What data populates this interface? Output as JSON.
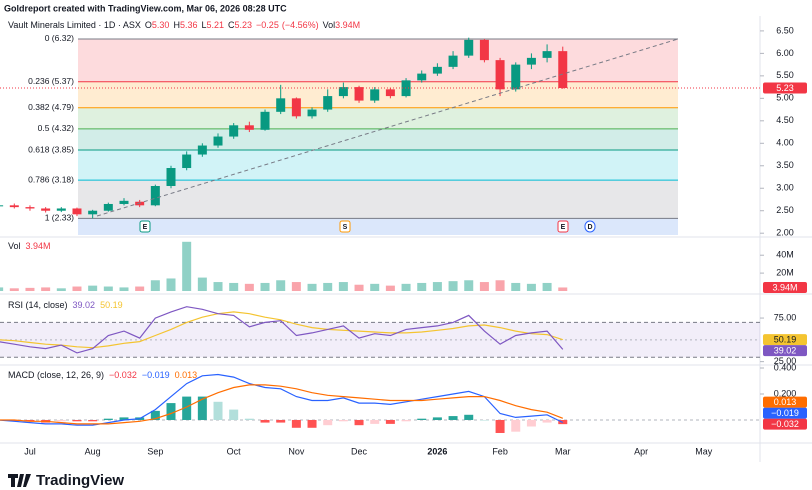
{
  "header": {
    "text": "Goldreport created with TradingView.com, Mar 06, 2026 08:28 UTC"
  },
  "footer": {
    "brand": "TradingView"
  },
  "chart_data": [
    {
      "type": "candlestick",
      "title": "Vault Minerals Limited · 1D · ASX",
      "ohlc": [
        {
          "key": "O",
          "value": 5.3,
          "label": "5.30"
        },
        {
          "key": "H",
          "value": 5.36,
          "label": "5.36"
        },
        {
          "key": "L",
          "value": 5.21,
          "label": "5.21"
        },
        {
          "key": "C",
          "value": 5.23,
          "label": "5.23"
        }
      ],
      "change": {
        "value": -0.25,
        "label": "−0.25"
      },
      "change_percent": {
        "value": -4.56,
        "label": "(−4.56%)"
      },
      "volume_key": "Vol",
      "volume": {
        "value": 3940000,
        "label": "3.94M"
      },
      "categories": [
        null,
        null,
        "Jul",
        null,
        null,
        null,
        "Aug",
        null,
        null,
        null,
        "Sep",
        null,
        null,
        null,
        null,
        "Oct",
        null,
        null,
        null,
        "Nov",
        null,
        null,
        null,
        "Dec",
        null,
        null,
        null,
        null,
        "2026",
        null,
        null,
        null,
        "Feb",
        null,
        null,
        null,
        "Mar",
        null,
        null,
        null,
        null,
        "Apr",
        null,
        null,
        null,
        "May"
      ],
      "open": [
        2.6,
        2.62,
        2.58,
        2.55,
        2.5,
        2.55,
        2.42,
        2.5,
        2.65,
        2.7,
        2.62,
        3.05,
        3.45,
        3.75,
        3.95,
        4.15,
        4.4,
        4.3,
        4.7,
        5.0,
        4.6,
        4.75,
        5.05,
        5.25,
        4.95,
        5.2,
        5.05,
        5.4,
        5.55,
        5.7,
        5.95,
        6.3,
        5.85,
        5.2,
        5.75,
        5.9,
        6.05,
        null,
        null,
        null,
        null,
        null,
        null,
        null,
        null,
        null
      ],
      "high": [
        2.68,
        2.66,
        2.62,
        2.58,
        2.58,
        2.57,
        2.52,
        2.68,
        2.78,
        2.74,
        3.08,
        3.5,
        3.82,
        4.0,
        4.22,
        4.45,
        4.48,
        4.75,
        5.3,
        5.02,
        4.8,
        5.2,
        5.35,
        5.28,
        5.25,
        5.24,
        5.45,
        5.62,
        5.78,
        6.05,
        6.35,
        6.32,
        5.9,
        5.8,
        6.0,
        6.2,
        6.15,
        null,
        null,
        null,
        null,
        null,
        null,
        null,
        null,
        null
      ],
      "low": [
        2.56,
        2.55,
        2.5,
        2.46,
        2.47,
        2.38,
        2.33,
        2.48,
        2.62,
        2.58,
        2.6,
        3.0,
        3.4,
        3.7,
        3.9,
        4.1,
        4.25,
        4.28,
        4.65,
        4.55,
        4.55,
        4.7,
        5.0,
        4.9,
        4.9,
        5.0,
        5.02,
        5.35,
        5.5,
        5.65,
        5.9,
        5.8,
        5.05,
        5.15,
        5.65,
        5.8,
        5.21,
        null,
        null,
        null,
        null,
        null,
        null,
        null,
        null,
        null
      ],
      "close": [
        2.62,
        2.58,
        2.55,
        2.5,
        2.55,
        2.42,
        2.5,
        2.65,
        2.72,
        2.62,
        3.05,
        3.45,
        3.75,
        3.95,
        4.15,
        4.4,
        4.3,
        4.7,
        5.0,
        4.6,
        4.75,
        5.05,
        5.25,
        4.95,
        5.2,
        5.05,
        5.4,
        5.55,
        5.7,
        5.95,
        6.3,
        5.85,
        5.2,
        5.75,
        5.9,
        6.05,
        5.23,
        null,
        null,
        null,
        null,
        null,
        null,
        null,
        null,
        null
      ],
      "up_color": "#089981",
      "down_color": "#f23645",
      "ylim": [
        1.96,
        6.52
      ],
      "yticks": [
        {
          "value": 6.5,
          "label": "6.50"
        },
        {
          "value": 6,
          "label": "6.00"
        },
        {
          "value": 5.5,
          "label": "5.50"
        },
        {
          "value": 5,
          "label": "5.00"
        },
        {
          "value": 4.5,
          "label": "4.50"
        },
        {
          "value": 4,
          "label": "4.00"
        },
        {
          "value": 3.5,
          "label": "3.50"
        },
        {
          "value": 3,
          "label": "3.00"
        },
        {
          "value": 2.5,
          "label": "2.50"
        },
        {
          "value": 2,
          "label": "2.00"
        }
      ],
      "last_price": {
        "value": 5.23,
        "label": "5.23"
      },
      "fibonacci": [
        {
          "value": 6.32,
          "label": "0 (6.32)",
          "color": "#787b86"
        },
        {
          "value": 5.37,
          "label": "0.236 (5.37)",
          "color": "#f23645"
        },
        {
          "value": 4.79,
          "label": "0.382 (4.79)",
          "color": "#ff9800"
        },
        {
          "value": 4.32,
          "label": "0.5 (4.32)",
          "color": "#4caf50"
        },
        {
          "value": 3.85,
          "label": "0.618 (3.85)",
          "color": "#089981"
        },
        {
          "value": 3.18,
          "label": "0.786 (3.18)",
          "color": "#00bcd4"
        },
        {
          "value": 2.33,
          "label": "1 (2.33)",
          "color": "#787b86"
        }
      ],
      "events": [
        {
          "label": "E",
          "color": "#089981"
        },
        {
          "label": "S",
          "color": "#ff9800"
        },
        {
          "label": "E",
          "color": "#f23645"
        },
        {
          "label": "D",
          "color": "#2962ff"
        }
      ]
    },
    {
      "type": "bar",
      "title": "Vol",
      "values": [
        4000000,
        3000000,
        3500000,
        4000000,
        3000000,
        5000000,
        6000000,
        5000000,
        4000000,
        5000000,
        12000000,
        14000000,
        55000000,
        15000000,
        10000000,
        9000000,
        8000000,
        9000000,
        12000000,
        10000000,
        8000000,
        9000000,
        10000000,
        7000000,
        8000000,
        6000000,
        8000000,
        9000000,
        10000000,
        11000000,
        12000000,
        10000000,
        12000000,
        9000000,
        8000000,
        9000000,
        3940000,
        null,
        null,
        null,
        null,
        null,
        null,
        null,
        null,
        null
      ],
      "last": {
        "value": 3940000,
        "label": "3.94M"
      },
      "color": "#f23645",
      "ylim": [
        0,
        57000000
      ],
      "yticks": [
        {
          "value": 40000000,
          "label": "40M"
        },
        {
          "value": 20000000,
          "label": "20M"
        }
      ]
    },
    {
      "type": "line",
      "title": "RSI (14, close)",
      "series": [
        {
          "name": "RSI",
          "color": "#7e57c2",
          "values": [
            48,
            45,
            42,
            40,
            44,
            35,
            40,
            55,
            60,
            52,
            75,
            82,
            88,
            85,
            80,
            78,
            65,
            70,
            72,
            55,
            58,
            62,
            66,
            52,
            57,
            55,
            62,
            64,
            66,
            70,
            78,
            60,
            45,
            55,
            58,
            60,
            39.02,
            null,
            null,
            null,
            null,
            null,
            null,
            null,
            null,
            null
          ]
        },
        {
          "name": "RSI-based MA",
          "color": "#f4c430",
          "values": [
            50,
            49,
            47,
            45,
            44,
            42,
            41,
            43,
            46,
            48,
            55,
            62,
            70,
            76,
            80,
            82,
            80,
            76,
            73,
            68,
            64,
            62,
            61,
            60,
            59,
            58,
            58,
            59,
            61,
            63,
            66,
            67,
            64,
            60,
            57,
            56,
            50.19,
            null,
            null,
            null,
            null,
            null,
            null,
            null,
            null,
            null
          ]
        }
      ],
      "band": [
        30,
        70
      ],
      "midline": 50,
      "ylim": [
        20,
        98
      ],
      "yticks": [
        {
          "value": 75,
          "label": "75.00"
        },
        {
          "value": 25,
          "label": "25.00"
        }
      ]
    },
    {
      "type": "macd",
      "title": "MACD (close, 12, 26, 9)",
      "histogram": [
        0.0,
        -0.01,
        -0.01,
        -0.02,
        -0.01,
        -0.01,
        -0.01,
        0.01,
        0.02,
        0.02,
        0.07,
        0.13,
        0.18,
        0.18,
        0.14,
        0.08,
        0.01,
        -0.02,
        -0.02,
        -0.06,
        -0.06,
        -0.04,
        -0.01,
        -0.04,
        -0.03,
        -0.03,
        -0.01,
        0.01,
        0.02,
        0.03,
        0.04,
        0.0,
        -0.1,
        -0.09,
        -0.05,
        -0.02,
        -0.032,
        null,
        null,
        null,
        null,
        null,
        null,
        null,
        null,
        null
      ],
      "series": [
        {
          "name": "MACD",
          "color": "#2962ff",
          "values": [
            0.0,
            -0.01,
            -0.02,
            -0.03,
            -0.03,
            -0.04,
            -0.04,
            -0.02,
            0.0,
            0.01,
            0.08,
            0.18,
            0.28,
            0.34,
            0.35,
            0.33,
            0.28,
            0.25,
            0.24,
            0.18,
            0.15,
            0.15,
            0.17,
            0.13,
            0.13,
            0.12,
            0.14,
            0.16,
            0.18,
            0.2,
            0.22,
            0.18,
            0.05,
            0.02,
            0.03,
            0.04,
            -0.019,
            null,
            null,
            null,
            null,
            null,
            null,
            null,
            null,
            null
          ]
        },
        {
          "name": "Signal",
          "color": "#ff6d00",
          "values": [
            0.0,
            0.0,
            -0.01,
            -0.01,
            -0.02,
            -0.03,
            -0.03,
            -0.03,
            -0.02,
            -0.01,
            0.01,
            0.05,
            0.1,
            0.16,
            0.21,
            0.25,
            0.27,
            0.27,
            0.26,
            0.24,
            0.21,
            0.19,
            0.18,
            0.17,
            0.16,
            0.15,
            0.15,
            0.15,
            0.16,
            0.17,
            0.18,
            0.18,
            0.15,
            0.11,
            0.08,
            0.06,
            0.013,
            null,
            null,
            null,
            null,
            null,
            null,
            null,
            null,
            null
          ]
        }
      ],
      "legend_values": [
        {
          "value": -0.032,
          "label": "−0.032",
          "color": "#f23645"
        },
        {
          "value": -0.019,
          "label": "−0.019",
          "color": "#2962ff"
        },
        {
          "value": 0.013,
          "label": "0.013",
          "color": "#ff6d00"
        }
      ],
      "ylim": [
        -0.154,
        0.4
      ],
      "yticks": [
        {
          "value": 0.4,
          "label": "0.400"
        },
        {
          "value": 0.2,
          "label": "0.200"
        }
      ]
    }
  ]
}
